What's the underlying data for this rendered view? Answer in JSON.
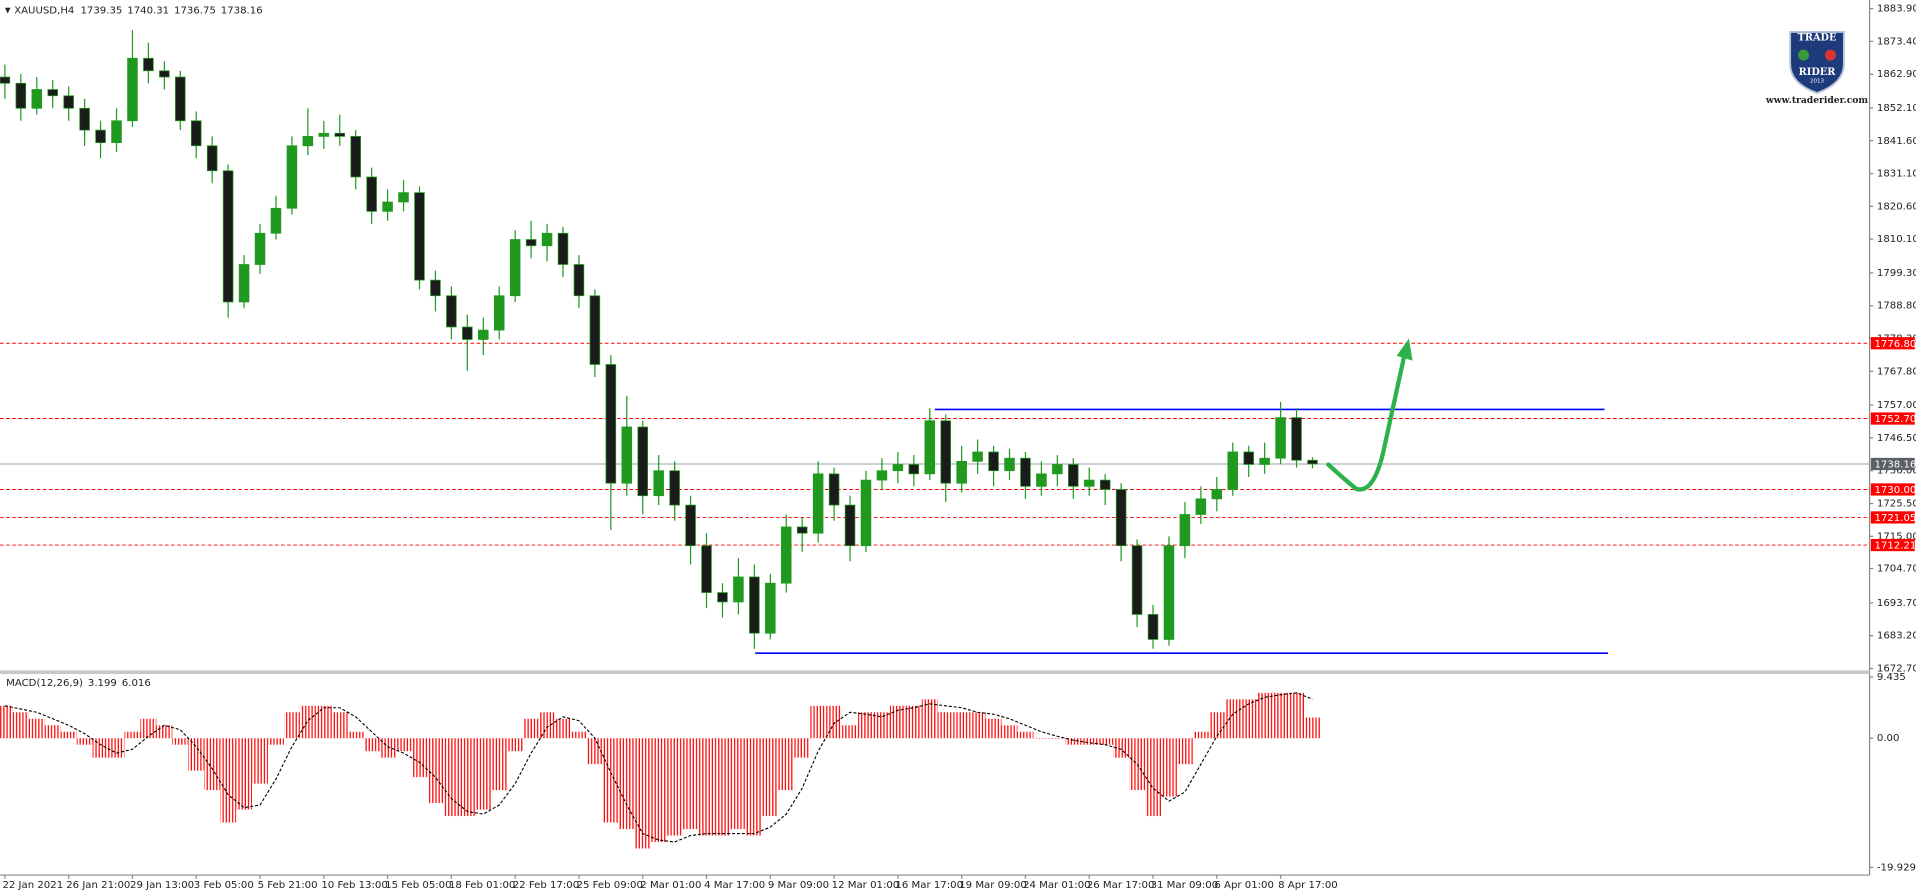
{
  "logo": {
    "top": "TRADE",
    "bottom": "RIDER",
    "year": "2013",
    "url": "www.traderider.com"
  },
  "chart_data": [
    {
      "type": "candlestick",
      "title": "XAUUSD,H4",
      "categories": [
        "22 Jan 2021",
        null,
        null,
        null,
        "26 Jan 21:00",
        null,
        null,
        null,
        "29 Jan 13:00",
        null,
        null,
        null,
        "3 Feb 05:00",
        null,
        null,
        null,
        "5 Feb 21:00",
        null,
        null,
        null,
        "10 Feb 13:00",
        null,
        null,
        null,
        "15 Feb 05:00",
        null,
        null,
        null,
        "18 Feb 01:00",
        null,
        null,
        null,
        "22 Feb 17:00",
        null,
        null,
        null,
        "25 Feb 09:00",
        null,
        null,
        null,
        "2 Mar 01:00",
        null,
        null,
        null,
        "4 Mar 17:00",
        null,
        null,
        null,
        "9 Mar 09:00",
        null,
        null,
        null,
        "12 Mar 01:00",
        null,
        null,
        null,
        "16 Mar 17:00",
        null,
        null,
        null,
        "19 Mar 09:00",
        null,
        null,
        null,
        "24 Mar 01:00",
        null,
        null,
        null,
        "26 Mar 17:00",
        null,
        null,
        null,
        "31 Mar 09:00",
        null,
        null,
        null,
        "6 Apr 01:00",
        null,
        null,
        null,
        "8 Apr 17:00",
        null,
        null
      ],
      "open": [
        1862,
        1860,
        1852,
        1858,
        1856,
        1852,
        1845,
        1841,
        1848,
        1868,
        1864,
        1862,
        1848,
        1840,
        1832,
        1790,
        1802,
        1812,
        1820,
        1840,
        1843,
        1844,
        1843,
        1830,
        1819,
        1822,
        1825,
        1797,
        1792,
        1782,
        1778,
        1781,
        1792,
        1810,
        1808,
        1812,
        1802,
        1792,
        1770,
        1732,
        1750,
        1728,
        1736,
        1725,
        1712,
        1697,
        1694,
        1702,
        1684,
        1700,
        1718,
        1716,
        1735,
        1725,
        1712,
        1733,
        1736,
        1738,
        1735,
        1752,
        1732,
        1739,
        1742,
        1736,
        1740,
        1731,
        1735,
        1738,
        1731,
        1733,
        1730,
        1712,
        1690,
        1682,
        1712,
        1722,
        1727,
        1730,
        1742,
        1738,
        1740,
        1753,
        1739.35
      ],
      "high": [
        1866,
        1863,
        1862,
        1861,
        1859,
        1855,
        1848,
        1852,
        1877,
        1873,
        1867,
        1864,
        1851,
        1843,
        1834,
        1805,
        1815,
        1824,
        1843,
        1852,
        1848,
        1850,
        1845,
        1833,
        1826,
        1829,
        1827,
        1800,
        1795,
        1786,
        1785,
        1795,
        1813,
        1816,
        1815,
        1814,
        1805,
        1794,
        1773,
        1760,
        1752,
        1741,
        1739,
        1728,
        1716,
        1700,
        1708,
        1706,
        1703,
        1722,
        1721,
        1739,
        1737,
        1728,
        1736,
        1740,
        1742,
        1741,
        1756,
        1754,
        1744,
        1746,
        1744,
        1743,
        1742,
        1739,
        1741,
        1740,
        1737,
        1735,
        1732,
        1714,
        1693,
        1715,
        1726,
        1731,
        1734,
        1745,
        1744,
        1745,
        1758,
        1756,
        1740.31
      ],
      "low": [
        1855,
        1848,
        1850,
        1852,
        1848,
        1840,
        1836,
        1838,
        1846,
        1860,
        1858,
        1845,
        1836,
        1828,
        1785,
        1788,
        1799,
        1810,
        1818,
        1837,
        1839,
        1840,
        1826,
        1815,
        1816,
        1819,
        1794,
        1787,
        1778,
        1768,
        1773,
        1778,
        1790,
        1804,
        1803,
        1798,
        1788,
        1766,
        1717,
        1728,
        1722,
        1725,
        1720,
        1706,
        1692,
        1689,
        1690,
        1679,
        1682,
        1697,
        1710,
        1713,
        1720,
        1707,
        1710,
        1730,
        1732,
        1731,
        1733,
        1726,
        1729,
        1735,
        1731,
        1733,
        1727,
        1728,
        1731,
        1727,
        1728,
        1725,
        1707,
        1686,
        1679,
        1680,
        1708,
        1719,
        1723,
        1728,
        1734,
        1735,
        1738,
        1737,
        1736.75
      ],
      "close": [
        1860,
        1852,
        1858,
        1856,
        1852,
        1845,
        1841,
        1848,
        1868,
        1864,
        1862,
        1848,
        1840,
        1832,
        1790,
        1802,
        1812,
        1820,
        1840,
        1843,
        1844,
        1843,
        1830,
        1819,
        1822,
        1825,
        1797,
        1792,
        1782,
        1778,
        1781,
        1792,
        1810,
        1808,
        1812,
        1802,
        1792,
        1770,
        1732,
        1750,
        1728,
        1736,
        1725,
        1712,
        1697,
        1694,
        1702,
        1684,
        1700,
        1718,
        1716,
        1735,
        1725,
        1712,
        1733,
        1736,
        1738,
        1735,
        1752,
        1732,
        1739,
        1742,
        1736,
        1740,
        1731,
        1735,
        1738,
        1731,
        1733,
        1730,
        1712,
        1690,
        1682,
        1712,
        1722,
        1727,
        1730,
        1742,
        1738,
        1740,
        1753,
        1739.35,
        1738.16
      ],
      "up_color": "#1f9a1f",
      "down_color": "#1b1b1b",
      "ylim": [
        1671.9,
        1886.6
      ],
      "yticks": [
        {
          "value": 1883.9,
          "label": "1883.90"
        },
        {
          "value": 1873.4,
          "label": "1873.40"
        },
        {
          "value": 1862.9,
          "label": "1862.90"
        },
        {
          "value": 1852.1,
          "label": "1852.10"
        },
        {
          "value": 1841.6,
          "label": "1841.60"
        },
        {
          "value": 1831.1,
          "label": "1831.10"
        },
        {
          "value": 1820.6,
          "label": "1820.60"
        },
        {
          "value": 1810.1,
          "label": "1810.10"
        },
        {
          "value": 1799.3,
          "label": "1799.30"
        },
        {
          "value": 1788.8,
          "label": "1788.80"
        },
        {
          "value": 1778.3,
          "label": "1778.30"
        },
        {
          "value": 1767.8,
          "label": "1767.80"
        },
        {
          "value": 1757.0,
          "label": "1757.00"
        },
        {
          "value": 1746.5,
          "label": "1746.50"
        },
        {
          "value": 1736.0,
          "label": "1736.00"
        },
        {
          "value": 1725.5,
          "label": "1725.50"
        },
        {
          "value": 1715.0,
          "label": "1715.00"
        },
        {
          "value": 1704.7,
          "label": "1704.70"
        },
        {
          "value": 1693.7,
          "label": "1693.70"
        },
        {
          "value": 1683.2,
          "label": "1683.20"
        },
        {
          "value": 1672.7,
          "label": "1672.70"
        }
      ],
      "levels": [
        {
          "value": 1776.8,
          "label": "1776.80"
        },
        {
          "value": 1752.7,
          "label": "1752.70"
        },
        {
          "value": 1730.0,
          "label": "1730.00"
        },
        {
          "value": 1721.05,
          "label": "1721.05"
        },
        {
          "value": 1712.21,
          "label": "1712.21"
        }
      ],
      "level_color": "#ff0000",
      "lines": [
        1755.6,
        1677.6
      ],
      "line_color": "#0000ff"
    },
    {
      "type": "macd",
      "title": "MACD(12,26,9)",
      "values": [
        5,
        4,
        3,
        2,
        1,
        -1,
        -3,
        -3,
        1,
        3,
        2,
        -1,
        -5,
        -8,
        -13,
        -11,
        -7,
        -1,
        4,
        5,
        5,
        4,
        1,
        -2,
        -3,
        -2,
        -6,
        -10,
        -12,
        -12,
        -11,
        -8,
        -2,
        3,
        4,
        3,
        1,
        -4,
        -13,
        -14,
        -17,
        -16,
        -15,
        -14,
        -15,
        -15,
        -14,
        -15,
        -12,
        -8,
        -3,
        5,
        5,
        2,
        4,
        4,
        5,
        5,
        6,
        4,
        4,
        4,
        3,
        2,
        1,
        0,
        0,
        -1,
        -1,
        -1,
        -3,
        -8,
        -12,
        -9,
        -4,
        1,
        4,
        6,
        6,
        7,
        7,
        7,
        3.199
      ],
      "signal": [
        5,
        4.5,
        4,
        3,
        2,
        0.7,
        -1,
        -2.3,
        -1.7,
        0.3,
        2,
        1.3,
        -1.3,
        -4.7,
        -8.7,
        -10.7,
        -10.3,
        -6.3,
        -1.3,
        2.7,
        4.7,
        4.7,
        3.3,
        1,
        -1.3,
        -2.3,
        -3.7,
        -6,
        -9.3,
        -11.3,
        -11.7,
        -10.3,
        -7,
        -2.3,
        1.7,
        3.3,
        2.7,
        0,
        -5.3,
        -10.3,
        -14.7,
        -15.7,
        -16,
        -15,
        -14.7,
        -14.7,
        -14.7,
        -14.7,
        -13.7,
        -11.7,
        -7.7,
        -2,
        2.3,
        4,
        3.7,
        3.3,
        4.3,
        4.7,
        5.3,
        5,
        4.7,
        4,
        3.7,
        3,
        2,
        1,
        0.3,
        -0.3,
        -0.7,
        -1,
        -1.7,
        -4,
        -7.7,
        -9.7,
        -8.3,
        -4,
        0.3,
        3.7,
        5.3,
        6.3,
        6.7,
        7,
        6.016
      ],
      "color": "#ff0000",
      "signal_color": "#000000",
      "ylim": [
        -21.1,
        9.8
      ],
      "yticks": [
        9.435,
        {
          "value": 0,
          "label": "0.00"
        },
        -19.929
      ]
    }
  ]
}
